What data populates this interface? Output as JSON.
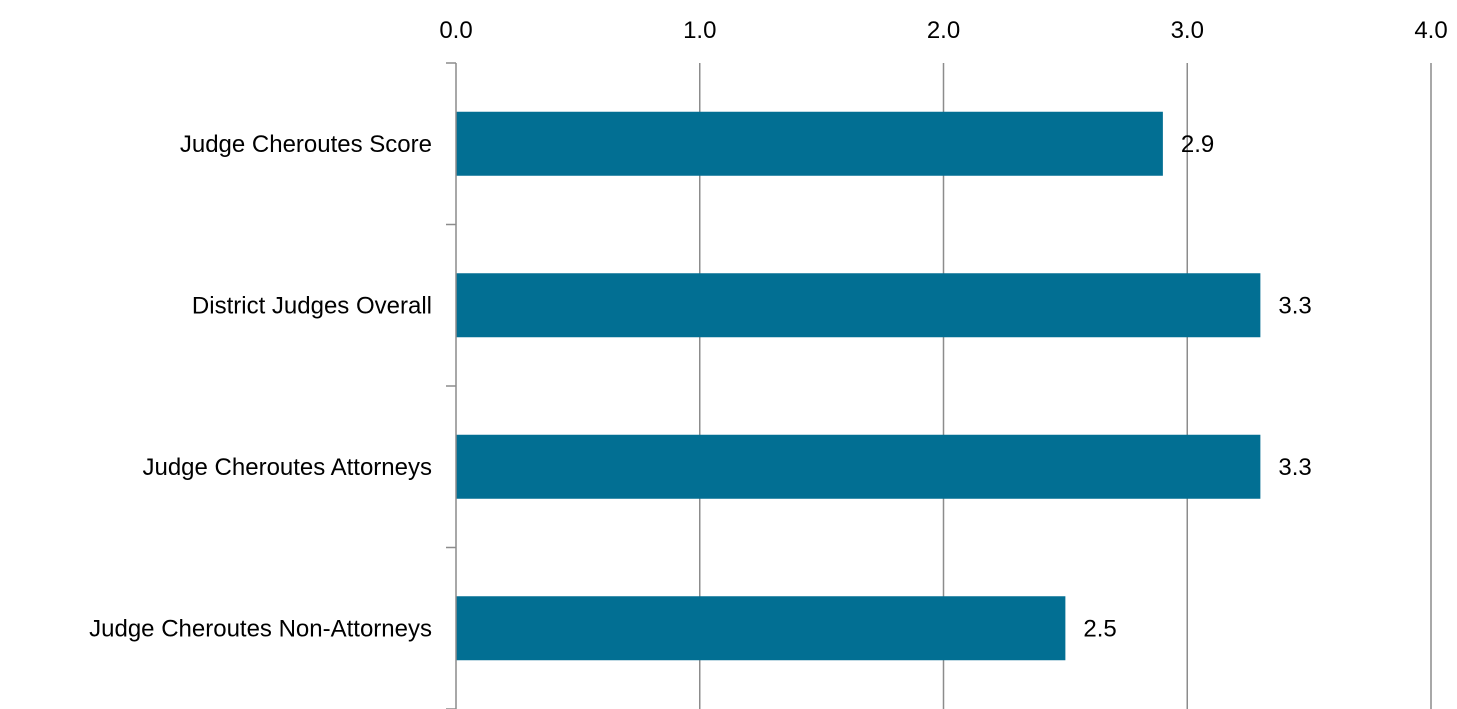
{
  "chart_data": {
    "type": "bar",
    "orientation": "horizontal",
    "categories": [
      "Judge Cheroutes Score",
      "District Judges Overall",
      "Judge Cheroutes Attorneys",
      "Judge Cheroutes Non-Attorneys"
    ],
    "values": [
      2.9,
      3.3,
      3.3,
      2.5
    ],
    "data_labels": [
      "2.9",
      "3.3",
      "3.3",
      "2.5"
    ],
    "xlim": [
      0,
      4
    ],
    "x_ticks": [
      0,
      1,
      2,
      3,
      4
    ],
    "x_tick_labels": [
      "0.0",
      "1.0",
      "2.0",
      "3.0",
      "4.0"
    ],
    "x_axis_position": "top",
    "grid": true,
    "legend": "none",
    "title": "",
    "xlabel": "",
    "ylabel": "",
    "bar_color": "#026f93",
    "grid_color": "#8c8c8c"
  }
}
